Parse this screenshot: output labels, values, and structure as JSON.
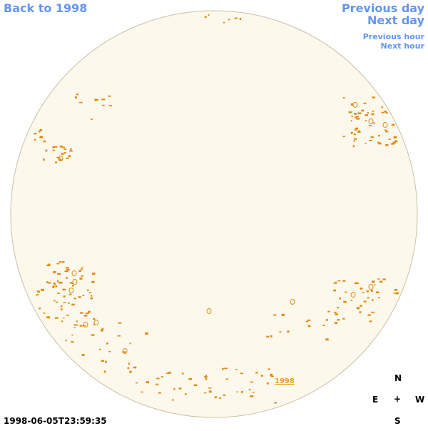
{
  "nav": {
    "back_label": "Back to 1998",
    "prev_day_label": "Previous day",
    "next_day_label": "Next day",
    "prev_hour_label": "Previous hour",
    "next_hour_label": "Next hour"
  },
  "disk": {
    "fill_color": "#fdf8ec",
    "border_color": "#c8c0a8",
    "contour_color": "#e08a10"
  },
  "marker": {
    "year_label": "1998"
  },
  "compass": {
    "n": "N",
    "e": "E",
    "center": "+",
    "w": "W",
    "s": "S"
  },
  "timestamp": "1998-06-05T23:59:35"
}
